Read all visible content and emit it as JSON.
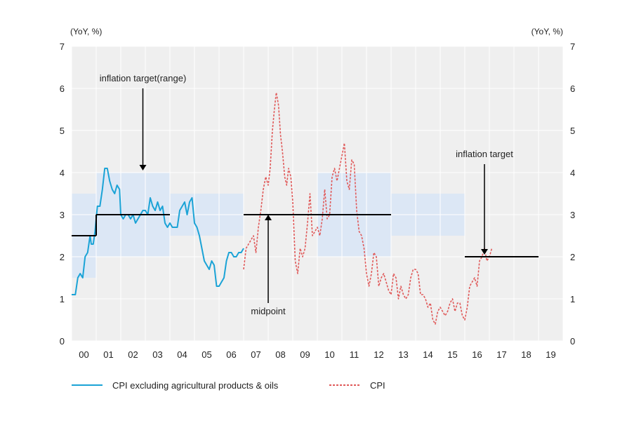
{
  "chart_data": {
    "type": "line",
    "y_unit_left": "(YoY, %)",
    "y_unit_right": "(YoY, %)",
    "ylim": [
      0,
      7
    ],
    "y_ticks": [
      0,
      1,
      2,
      3,
      4,
      5,
      6,
      7
    ],
    "xlim": [
      2000.0,
      2020.0
    ],
    "x_tick_labels": [
      "00",
      "01",
      "02",
      "03",
      "04",
      "05",
      "06",
      "07",
      "08",
      "09",
      "10",
      "11",
      "12",
      "13",
      "14",
      "15",
      "16",
      "17",
      "18",
      "19"
    ],
    "grid": true,
    "legend_position": "bottom",
    "colors": {
      "core": "#1BA3D6",
      "cpi": "#E05A5A",
      "target": "#000000",
      "band": "#DCE7F5",
      "plot_bg": "#EFEFEF",
      "grid": "#FFFFFF"
    },
    "target_bands": [
      {
        "x0": 2000.0,
        "x1": 2001.0,
        "low": 1.5,
        "high": 3.5
      },
      {
        "x0": 2001.0,
        "x1": 2004.0,
        "low": 2.0,
        "high": 4.0
      },
      {
        "x0": 2004.0,
        "x1": 2007.0,
        "low": 2.5,
        "high": 3.5
      },
      {
        "x0": 2010.0,
        "x1": 2013.0,
        "low": 2.0,
        "high": 4.0
      },
      {
        "x0": 2013.0,
        "x1": 2016.0,
        "low": 2.5,
        "high": 3.5
      }
    ],
    "target_lines": [
      {
        "x0": 2000.0,
        "x1": 2001.0,
        "y": 2.5
      },
      {
        "x0": 2001.0,
        "x1": 2004.0,
        "y": 3.0
      },
      {
        "x0": 2007.0,
        "x1": 2013.0,
        "y": 3.0
      },
      {
        "x0": 2016.0,
        "x1": 2019.0,
        "y": 2.0
      }
    ],
    "series": [
      {
        "name": "CPI excluding agricultural products & oils",
        "style": "solid",
        "x": [
          2000.0,
          2000.15,
          2000.25,
          2000.35,
          2000.45,
          2000.55,
          2000.65,
          2000.75,
          2000.8,
          2000.88,
          2000.95,
          2001.05,
          2001.15,
          2001.25,
          2001.35,
          2001.45,
          2001.55,
          2001.65,
          2001.75,
          2001.85,
          2001.95,
          2002.0,
          2002.1,
          2002.2,
          2002.3,
          2002.4,
          2002.5,
          2002.6,
          2002.7,
          2002.8,
          2002.9,
          2003.0,
          2003.1,
          2003.2,
          2003.3,
          2003.4,
          2003.5,
          2003.6,
          2003.7,
          2003.8,
          2003.9,
          2004.0,
          2004.1,
          2004.2,
          2004.3,
          2004.4,
          2004.5,
          2004.6,
          2004.7,
          2004.8,
          2004.9,
          2005.0,
          2005.1,
          2005.2,
          2005.3,
          2005.4,
          2005.5,
          2005.6,
          2005.7,
          2005.8,
          2005.9,
          2006.0,
          2006.1,
          2006.2,
          2006.3,
          2006.4,
          2006.5,
          2006.6,
          2006.7,
          2006.8,
          2006.9,
          2007.0
        ],
        "y": [
          1.1,
          1.1,
          1.5,
          1.6,
          1.5,
          2.0,
          2.1,
          2.5,
          2.3,
          2.3,
          2.6,
          3.2,
          3.2,
          3.6,
          4.1,
          4.1,
          3.8,
          3.6,
          3.5,
          3.7,
          3.6,
          3.0,
          2.9,
          3.0,
          3.0,
          2.9,
          3.0,
          2.8,
          2.9,
          3.0,
          3.1,
          3.1,
          3.0,
          3.4,
          3.2,
          3.1,
          3.3,
          3.1,
          3.2,
          2.8,
          2.7,
          2.8,
          2.7,
          2.7,
          2.7,
          3.1,
          3.2,
          3.3,
          3.0,
          3.3,
          3.4,
          2.8,
          2.7,
          2.5,
          2.2,
          1.9,
          1.8,
          1.7,
          1.9,
          1.8,
          1.3,
          1.3,
          1.4,
          1.5,
          1.9,
          2.1,
          2.1,
          2.0,
          2.0,
          2.1,
          2.1,
          2.2
        ]
      },
      {
        "name": "CPI",
        "style": "dashed",
        "x": [
          2007.0,
          2007.1,
          2007.2,
          2007.3,
          2007.4,
          2007.5,
          2007.6,
          2007.7,
          2007.8,
          2007.9,
          2008.0,
          2008.08,
          2008.17,
          2008.25,
          2008.33,
          2008.42,
          2008.5,
          2008.58,
          2008.67,
          2008.75,
          2008.83,
          2008.92,
          2009.0,
          2009.1,
          2009.2,
          2009.3,
          2009.4,
          2009.5,
          2009.6,
          2009.7,
          2009.8,
          2009.9,
          2010.0,
          2010.1,
          2010.2,
          2010.3,
          2010.4,
          2010.5,
          2010.6,
          2010.7,
          2010.8,
          2010.9,
          2011.0,
          2011.1,
          2011.2,
          2011.3,
          2011.4,
          2011.5,
          2011.6,
          2011.7,
          2011.8,
          2011.9,
          2012.0,
          2012.1,
          2012.2,
          2012.3,
          2012.4,
          2012.5,
          2012.6,
          2012.7,
          2012.8,
          2012.9,
          2013.0,
          2013.1,
          2013.2,
          2013.3,
          2013.4,
          2013.5,
          2013.6,
          2013.7,
          2013.8,
          2013.9,
          2014.0,
          2014.1,
          2014.2,
          2014.3,
          2014.4,
          2014.5,
          2014.6,
          2014.7,
          2014.8,
          2014.9,
          2015.0,
          2015.1,
          2015.2,
          2015.3,
          2015.4,
          2015.5,
          2015.6,
          2015.7,
          2015.8,
          2015.9,
          2016.0,
          2016.1,
          2016.2,
          2016.3,
          2016.4,
          2016.5,
          2016.6,
          2016.7,
          2016.8,
          2016.9,
          2017.0,
          2017.1
        ],
        "y": [
          1.7,
          2.2,
          2.3,
          2.4,
          2.5,
          2.1,
          2.7,
          3.1,
          3.6,
          3.9,
          3.7,
          4.1,
          5.0,
          5.5,
          5.9,
          5.6,
          4.9,
          4.5,
          3.9,
          3.7,
          4.1,
          3.9,
          3.3,
          1.9,
          1.6,
          2.2,
          2.0,
          2.2,
          2.8,
          3.5,
          2.5,
          2.6,
          2.7,
          2.5,
          2.9,
          3.6,
          2.9,
          3.0,
          3.9,
          4.1,
          3.8,
          4.1,
          4.4,
          4.7,
          3.8,
          3.6,
          4.3,
          4.2,
          3.1,
          2.6,
          2.5,
          2.2,
          1.6,
          1.3,
          1.6,
          2.1,
          2.0,
          1.3,
          1.5,
          1.6,
          1.4,
          1.2,
          1.1,
          1.6,
          1.5,
          1.0,
          1.3,
          1.1,
          1.0,
          1.1,
          1.5,
          1.7,
          1.7,
          1.6,
          1.1,
          1.1,
          1.0,
          0.8,
          0.9,
          0.5,
          0.4,
          0.7,
          0.8,
          0.7,
          0.6,
          0.7,
          0.9,
          1.0,
          0.7,
          0.9,
          0.9,
          0.6,
          0.5,
          0.8,
          1.3,
          1.4,
          1.5,
          1.3,
          1.9,
          2.0,
          2.2,
          1.9,
          2.0,
          2.2
        ]
      }
    ],
    "annotations": [
      {
        "text": "inflation target(range)",
        "arrow_x": 2002.9,
        "arrow_from_y": 6.0,
        "arrow_to_y": 4.05
      },
      {
        "text": "midpoint",
        "arrow_x": 2008.0,
        "arrow_from_y": 0.9,
        "arrow_to_y": 3.0
      },
      {
        "text": "inflation target",
        "arrow_x": 2016.8,
        "arrow_from_y": 4.2,
        "arrow_to_y": 2.05
      }
    ]
  }
}
